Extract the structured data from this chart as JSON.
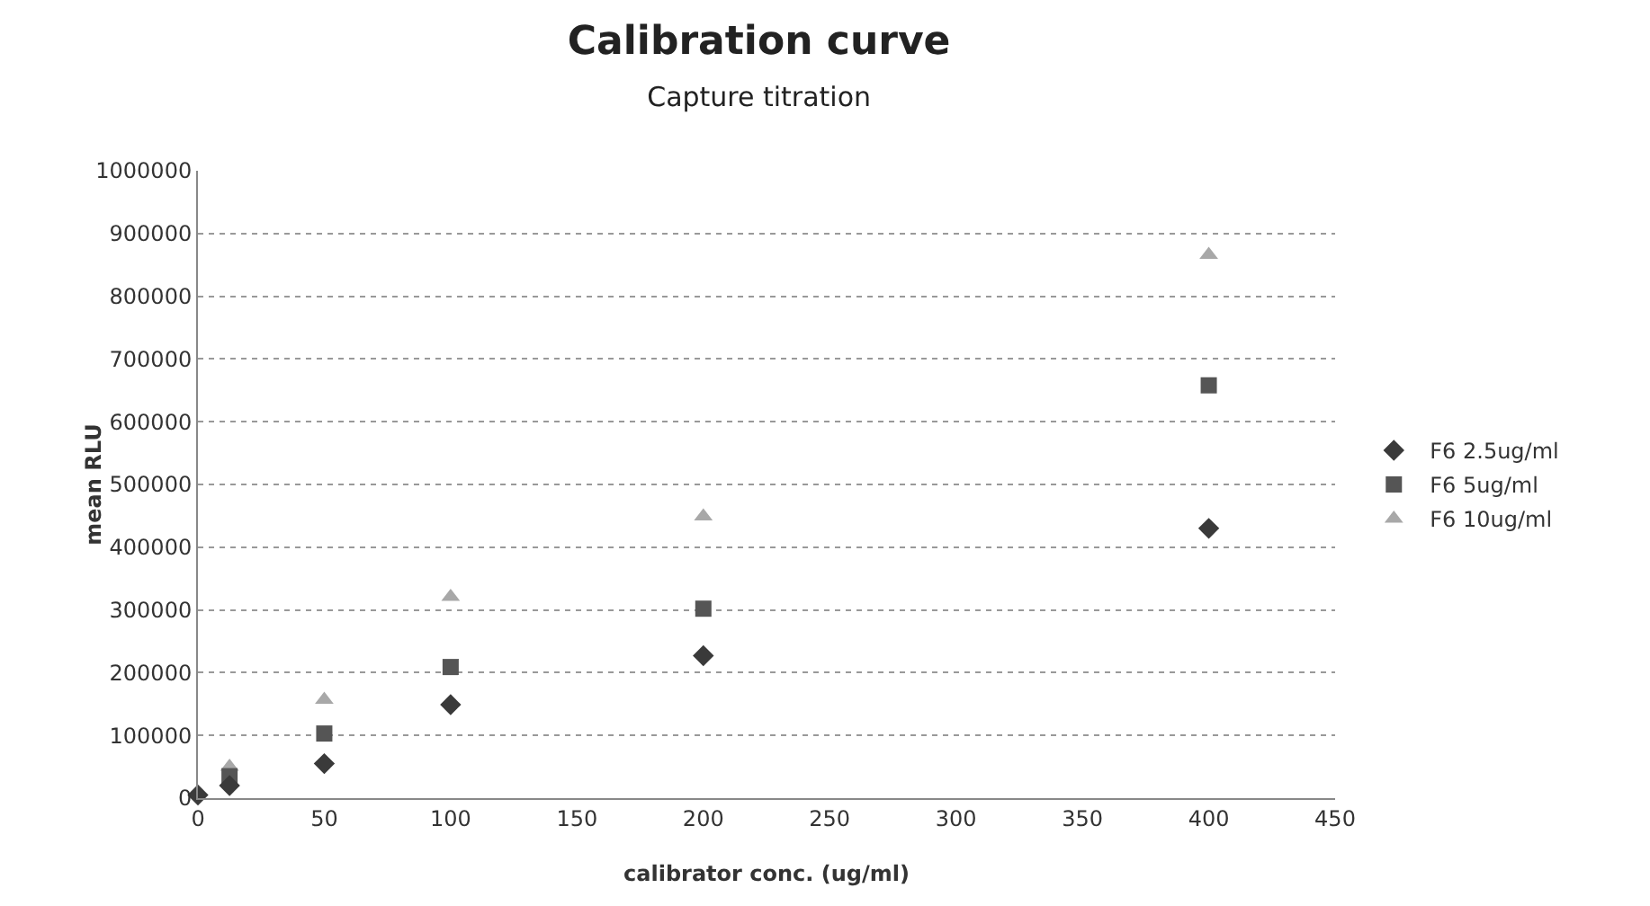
{
  "chart_data": {
    "type": "scatter",
    "title": "Calibration curve",
    "subtitle": "Capture titration",
    "xlabel": "calibrator conc. (ug/ml)",
    "ylabel": "mean RLU",
    "x": [
      0,
      12.5,
      50,
      100,
      200,
      400
    ],
    "series": [
      {
        "name": "F6 2.5ug/ml",
        "color": "#3a3a3a",
        "marker": "diamond",
        "values": [
          5000,
          20000,
          55000,
          149000,
          227000,
          430000
        ]
      },
      {
        "name": "F6 5ug/ml",
        "color": "#555555",
        "marker": "square",
        "values": [
          null,
          35000,
          103000,
          209000,
          302000,
          658000
        ]
      },
      {
        "name": "F6 10ug/ml",
        "color": "#a8a8a8",
        "marker": "triangle",
        "values": [
          null,
          50000,
          157000,
          321000,
          449000,
          866000
        ]
      }
    ],
    "xlim": [
      0,
      450
    ],
    "xticks": [
      0,
      50,
      100,
      150,
      200,
      250,
      300,
      350,
      400,
      450
    ],
    "ylim": [
      0,
      1000000
    ],
    "yticks": [
      0,
      100000,
      200000,
      300000,
      400000,
      500000,
      600000,
      700000,
      800000,
      900000,
      1000000
    ],
    "grid": "y",
    "legend": "right"
  }
}
